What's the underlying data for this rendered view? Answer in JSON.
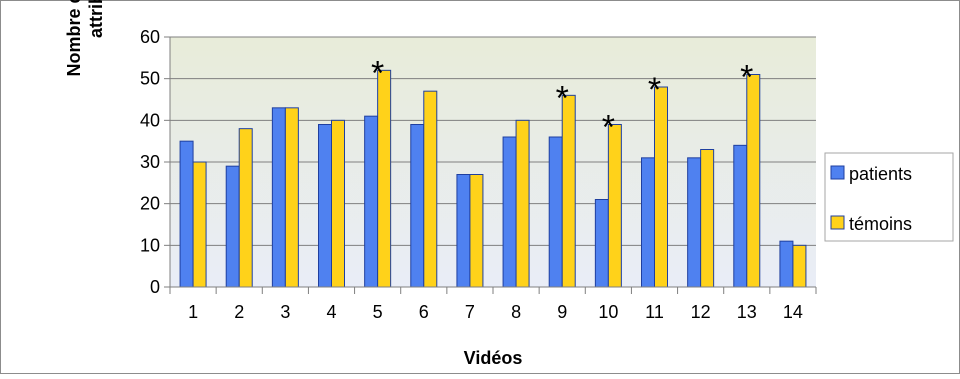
{
  "chart_data": {
    "type": "bar",
    "xlabel": "Vidéos",
    "ylabel": "Nombre de points attribués",
    "ylabel_lines": [
      "Nombre de points",
      "attribués"
    ],
    "ylim": [
      0,
      60
    ],
    "yticks": [
      0,
      10,
      20,
      30,
      40,
      50,
      60
    ],
    "categories": [
      "1",
      "2",
      "3",
      "4",
      "5",
      "6",
      "7",
      "8",
      "9",
      "10",
      "11",
      "12",
      "13",
      "14"
    ],
    "series": [
      {
        "name": "patients",
        "color": "#4f81f0",
        "values": [
          35,
          29,
          43,
          39,
          41,
          39,
          27,
          36,
          36,
          21,
          31,
          31,
          34,
          11
        ]
      },
      {
        "name": "témoins",
        "color": "#ffd21a",
        "values": [
          30,
          38,
          43,
          40,
          52,
          47,
          27,
          40,
          46,
          39,
          48,
          33,
          51,
          10
        ]
      }
    ],
    "annotations": [
      {
        "category": "5",
        "text": "*"
      },
      {
        "category": "9",
        "text": "*"
      },
      {
        "category": "10",
        "text": "*"
      },
      {
        "category": "11",
        "text": "*"
      },
      {
        "category": "13",
        "text": "*"
      }
    ],
    "grid": true,
    "legend": "right",
    "background_gradient": [
      "#e8ecd9",
      "#e9edf7"
    ]
  }
}
